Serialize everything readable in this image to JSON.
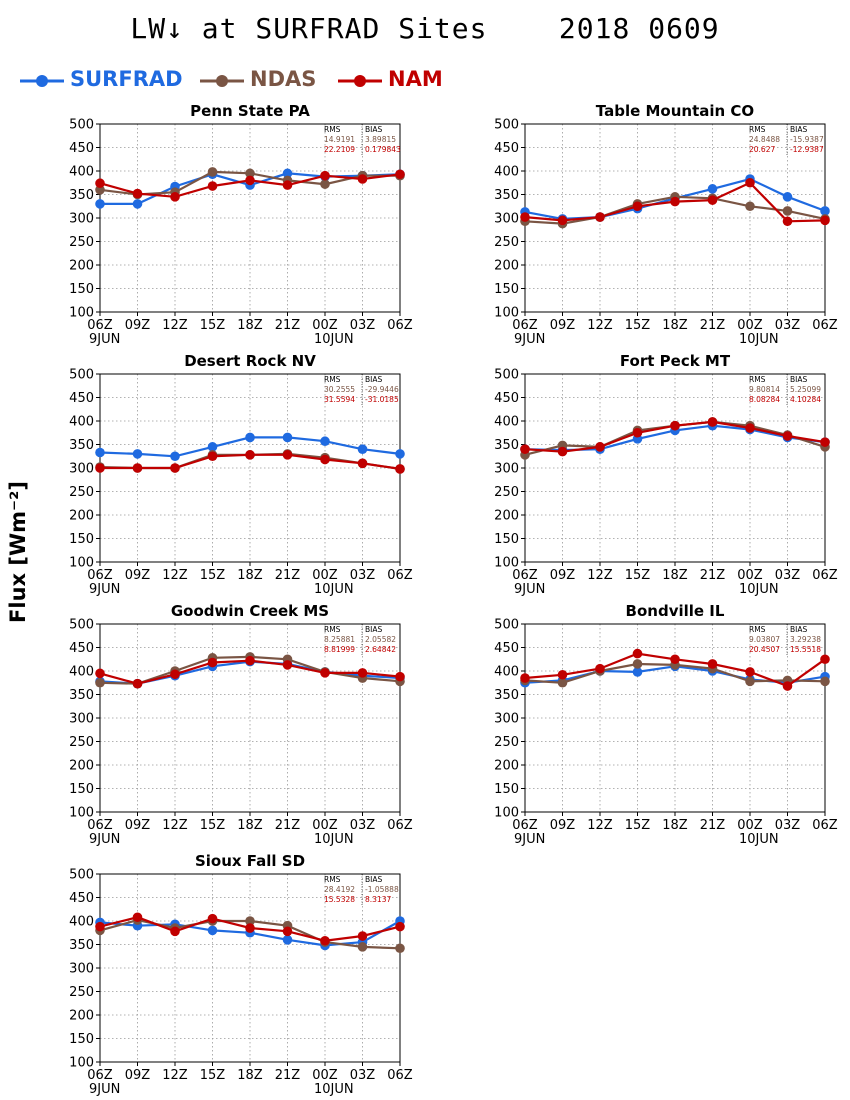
{
  "title": "LW↓ at SURFRAD Sites    2018 0609",
  "ylabel": "Flux [Wm⁻²]",
  "legend": [
    {
      "name": "SURFRAD",
      "color": "#1f6ae0"
    },
    {
      "name": "NDAS",
      "color": "#7a5544"
    },
    {
      "name": "NAM",
      "color": "#c00000"
    }
  ],
  "chart_data": [
    {
      "type": "line",
      "title": "Penn State PA",
      "categories": [
        "06Z",
        "09Z",
        "12Z",
        "15Z",
        "18Z",
        "21Z",
        "00Z",
        "03Z",
        "06Z"
      ],
      "date_labels": {
        "0": "9JUN",
        "6": "10JUN"
      },
      "ylim": [
        100,
        500
      ],
      "yticks": [
        100,
        150,
        200,
        250,
        300,
        350,
        400,
        450,
        500
      ],
      "grid": true,
      "stats_header": [
        "RMS",
        "BIAS"
      ],
      "stats": [
        {
          "series": "NDAS",
          "rms": "14.9191",
          "bias": "3.89815"
        },
        {
          "series": "NAM",
          "rms": "22.2109",
          "bias": "0.179843"
        }
      ],
      "series": [
        {
          "name": "SURFRAD",
          "values": [
            330,
            330,
            367,
            393,
            370,
            395,
            388,
            390,
            393
          ]
        },
        {
          "name": "NDAS",
          "values": [
            360,
            350,
            355,
            398,
            395,
            380,
            372,
            390,
            390
          ]
        },
        {
          "name": "NAM",
          "values": [
            374,
            352,
            345,
            368,
            380,
            370,
            390,
            383,
            393
          ]
        }
      ]
    },
    {
      "type": "line",
      "title": "Table Mountain CO",
      "categories": [
        "06Z",
        "09Z",
        "12Z",
        "15Z",
        "18Z",
        "21Z",
        "00Z",
        "03Z",
        "06Z"
      ],
      "date_labels": {
        "0": "9JUN",
        "6": "10JUN"
      },
      "ylim": [
        100,
        500
      ],
      "yticks": [
        100,
        150,
        200,
        250,
        300,
        350,
        400,
        450,
        500
      ],
      "grid": true,
      "stats_header": [
        "RMS",
        "BIAS"
      ],
      "stats": [
        {
          "series": "NDAS",
          "rms": "24.8488",
          "bias": "-15.9387"
        },
        {
          "series": "NAM",
          "rms": "20.627",
          "bias": "-12.9387"
        }
      ],
      "series": [
        {
          "name": "SURFRAD",
          "values": [
            313,
            298,
            302,
            320,
            342,
            362,
            383,
            345,
            315
          ]
        },
        {
          "name": "NDAS",
          "values": [
            293,
            288,
            302,
            330,
            345,
            342,
            325,
            315,
            298
          ]
        },
        {
          "name": "NAM",
          "values": [
            302,
            295,
            302,
            325,
            335,
            338,
            375,
            293,
            295
          ]
        }
      ]
    },
    {
      "type": "line",
      "title": "Desert Rock NV",
      "categories": [
        "06Z",
        "09Z",
        "12Z",
        "15Z",
        "18Z",
        "21Z",
        "00Z",
        "03Z",
        "06Z"
      ],
      "date_labels": {
        "0": "9JUN",
        "6": "10JUN"
      },
      "ylim": [
        100,
        500
      ],
      "yticks": [
        100,
        150,
        200,
        250,
        300,
        350,
        400,
        450,
        500
      ],
      "grid": true,
      "stats_header": [
        "RMS",
        "BIAS"
      ],
      "stats": [
        {
          "series": "NDAS",
          "rms": "30.2555",
          "bias": "-29.9446"
        },
        {
          "series": "NAM",
          "rms": "31.5594",
          "bias": "-31.0185"
        }
      ],
      "series": [
        {
          "name": "SURFRAD",
          "values": [
            333,
            330,
            325,
            345,
            365,
            365,
            357,
            340,
            330
          ]
        },
        {
          "name": "NDAS",
          "values": [
            302,
            300,
            300,
            328,
            328,
            330,
            322,
            310,
            298
          ]
        },
        {
          "name": "NAM",
          "values": [
            300,
            300,
            300,
            325,
            328,
            328,
            318,
            310,
            298
          ]
        }
      ]
    },
    {
      "type": "line",
      "title": "Fort Peck MT",
      "categories": [
        "06Z",
        "09Z",
        "12Z",
        "15Z",
        "18Z",
        "21Z",
        "00Z",
        "03Z",
        "06Z"
      ],
      "date_labels": {
        "0": "9JUN",
        "6": "10JUN"
      },
      "ylim": [
        100,
        500
      ],
      "yticks": [
        100,
        150,
        200,
        250,
        300,
        350,
        400,
        450,
        500
      ],
      "grid": true,
      "stats_header": [
        "RMS",
        "BIAS"
      ],
      "stats": [
        {
          "series": "NDAS",
          "rms": "9.80814",
          "bias": "5.25099"
        },
        {
          "series": "NAM",
          "rms": "8.08284",
          "bias": "4.10284"
        }
      ],
      "series": [
        {
          "name": "SURFRAD",
          "values": [
            340,
            338,
            340,
            362,
            380,
            390,
            382,
            365,
            355
          ]
        },
        {
          "name": "NDAS",
          "values": [
            328,
            348,
            345,
            380,
            390,
            398,
            390,
            370,
            345
          ]
        },
        {
          "name": "NAM",
          "values": [
            340,
            335,
            345,
            375,
            390,
            398,
            385,
            368,
            355
          ]
        }
      ]
    },
    {
      "type": "line",
      "title": "Goodwin Creek MS",
      "categories": [
        "06Z",
        "09Z",
        "12Z",
        "15Z",
        "18Z",
        "21Z",
        "00Z",
        "03Z",
        "06Z"
      ],
      "date_labels": {
        "0": "9JUN",
        "6": "10JUN"
      },
      "ylim": [
        100,
        500
      ],
      "yticks": [
        100,
        150,
        200,
        250,
        300,
        350,
        400,
        450,
        500
      ],
      "grid": true,
      "stats_header": [
        "RMS",
        "BIAS"
      ],
      "stats": [
        {
          "series": "NDAS",
          "rms": "8.25881",
          "bias": "2.05582"
        },
        {
          "series": "NAM",
          "rms": "8.81999",
          "bias": "2.64842"
        }
      ],
      "series": [
        {
          "name": "SURFRAD",
          "values": [
            378,
            373,
            390,
            410,
            420,
            415,
            398,
            390,
            385
          ]
        },
        {
          "name": "NDAS",
          "values": [
            375,
            373,
            400,
            428,
            430,
            425,
            398,
            385,
            378
          ]
        },
        {
          "name": "NAM",
          "values": [
            395,
            373,
            393,
            418,
            422,
            413,
            396,
            396,
            388
          ]
        }
      ]
    },
    {
      "type": "line",
      "title": "Bondville IL",
      "categories": [
        "06Z",
        "09Z",
        "12Z",
        "15Z",
        "18Z",
        "21Z",
        "00Z",
        "03Z",
        "06Z"
      ],
      "date_labels": {
        "0": "9JUN",
        "6": "10JUN"
      },
      "ylim": [
        100,
        500
      ],
      "yticks": [
        100,
        150,
        200,
        250,
        300,
        350,
        400,
        450,
        500
      ],
      "grid": true,
      "stats_header": [
        "RMS",
        "BIAS"
      ],
      "stats": [
        {
          "series": "NDAS",
          "rms": "9.03807",
          "bias": "3.29238"
        },
        {
          "series": "NAM",
          "rms": "20.4507",
          "bias": "15.5518"
        }
      ],
      "series": [
        {
          "name": "SURFRAD",
          "values": [
            375,
            380,
            400,
            398,
            410,
            400,
            382,
            375,
            388
          ]
        },
        {
          "name": "NDAS",
          "values": [
            380,
            375,
            400,
            415,
            413,
            405,
            378,
            380,
            378
          ]
        },
        {
          "name": "NAM",
          "values": [
            385,
            392,
            405,
            437,
            425,
            415,
            398,
            368,
            425
          ]
        }
      ]
    },
    {
      "type": "line",
      "title": "Sioux Fall SD",
      "categories": [
        "06Z",
        "09Z",
        "12Z",
        "15Z",
        "18Z",
        "21Z",
        "00Z",
        "03Z",
        "06Z"
      ],
      "date_labels": {
        "0": "9JUN",
        "6": "10JUN"
      },
      "ylim": [
        100,
        500
      ],
      "yticks": [
        100,
        150,
        200,
        250,
        300,
        350,
        400,
        450,
        500
      ],
      "grid": true,
      "stats_header": [
        "RMS",
        "BIAS"
      ],
      "stats": [
        {
          "series": "NDAS",
          "rms": "28.4192",
          "bias": "-1.05888"
        },
        {
          "series": "NAM",
          "rms": "15.5328",
          "bias": "8.3137"
        }
      ],
      "series": [
        {
          "name": "SURFRAD",
          "values": [
            397,
            390,
            393,
            380,
            375,
            360,
            348,
            355,
            400
          ]
        },
        {
          "name": "NDAS",
          "values": [
            380,
            402,
            385,
            400,
            400,
            390,
            355,
            345,
            342
          ]
        },
        {
          "name": "NAM",
          "values": [
            388,
            408,
            378,
            405,
            385,
            378,
            358,
            368,
            388
          ]
        }
      ]
    }
  ]
}
